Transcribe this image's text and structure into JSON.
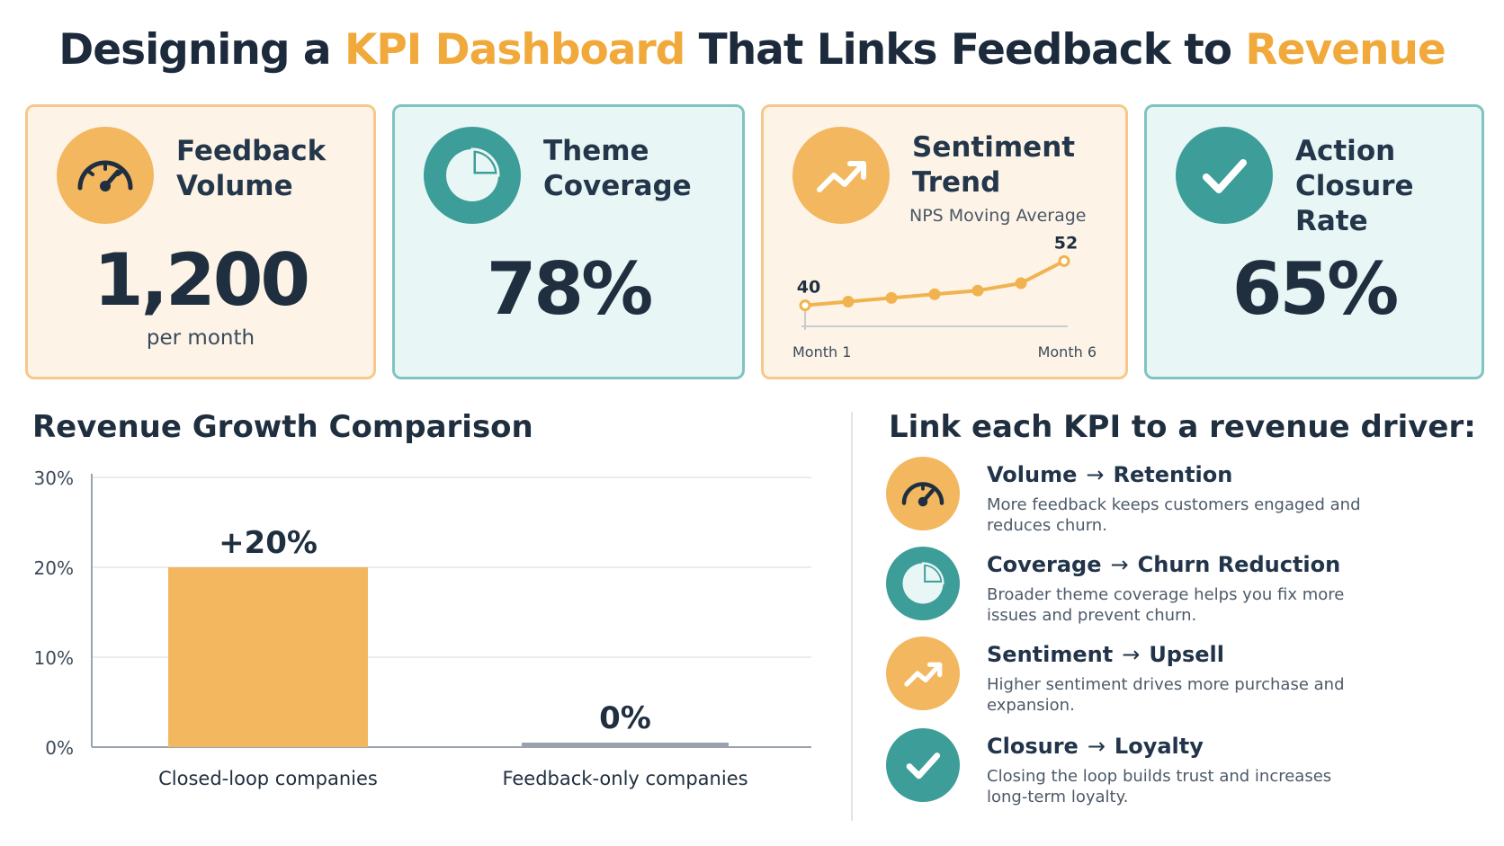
{
  "title": {
    "part1": "Designing a ",
    "highlight1": "KPI Dashboard",
    "part2": " That Links Feedback to ",
    "highlight2": "Revenue"
  },
  "colors": {
    "orange": "#f2b75f",
    "teal": "#3d9d99",
    "navy": "#1f2f3f",
    "grey_bar": "#9aa3ad"
  },
  "kpis": {
    "volume": {
      "title_line1": "Feedback",
      "title_line2": "Volume",
      "value": "1,200",
      "sub": "per month",
      "icon": "gauge-icon"
    },
    "coverage": {
      "title_line1": "Theme",
      "title_line2": "Coverage",
      "value": "78%",
      "icon": "pie-icon"
    },
    "sentiment": {
      "title_line1": "Sentiment",
      "title_line2": "Trend",
      "sub": "NPS Moving Average",
      "icon": "trend-up-icon"
    },
    "closure": {
      "title_line1": "Action",
      "title_line2": "Closure Rate",
      "value": "65%",
      "icon": "check-icon"
    }
  },
  "chart_data": [
    {
      "type": "line",
      "title": "",
      "subtitle": "NPS Moving Average",
      "x": [
        1,
        2,
        3,
        4,
        5,
        6,
        7
      ],
      "values": [
        40,
        41,
        42,
        43,
        44,
        46,
        52
      ],
      "tick_labels": [
        "Month 1",
        "Month 6"
      ],
      "start_label": "40",
      "end_label": "52",
      "ylim": [
        36,
        56
      ],
      "grid": false
    },
    {
      "type": "bar",
      "title": "Revenue Growth Comparison",
      "categories": [
        "Closed-loop companies",
        "Feedback-only companies"
      ],
      "values": [
        20,
        0
      ],
      "value_labels": [
        "+20%",
        "0%"
      ],
      "yticks": [
        "0%",
        "10%",
        "20%",
        "30%"
      ],
      "ylim": [
        0,
        30
      ],
      "grid": true
    }
  ],
  "drivers": {
    "title": "Link each KPI to a revenue driver:",
    "arrow": "→",
    "items": [
      {
        "kpi": "Volume",
        "driver": "Retention",
        "desc": "More feedback keeps customers engaged and reduces churn.",
        "icon": "gauge-icon",
        "color": "#f2b75f"
      },
      {
        "kpi": "Coverage",
        "driver": "Churn Reduction",
        "desc": "Broader theme coverage helps you fix more issues and prevent churn.",
        "icon": "pie-icon",
        "color": "#3d9d99"
      },
      {
        "kpi": "Sentiment",
        "driver": "Upsell",
        "desc": "Higher sentiment drives more purchase and expansion.",
        "icon": "trend-up-icon",
        "color": "#f2b75f"
      },
      {
        "kpi": "Closure",
        "driver": "Loyalty",
        "desc": "Closing the loop builds trust and increases long-term loyalty.",
        "icon": "check-icon",
        "color": "#3d9d99"
      }
    ]
  }
}
